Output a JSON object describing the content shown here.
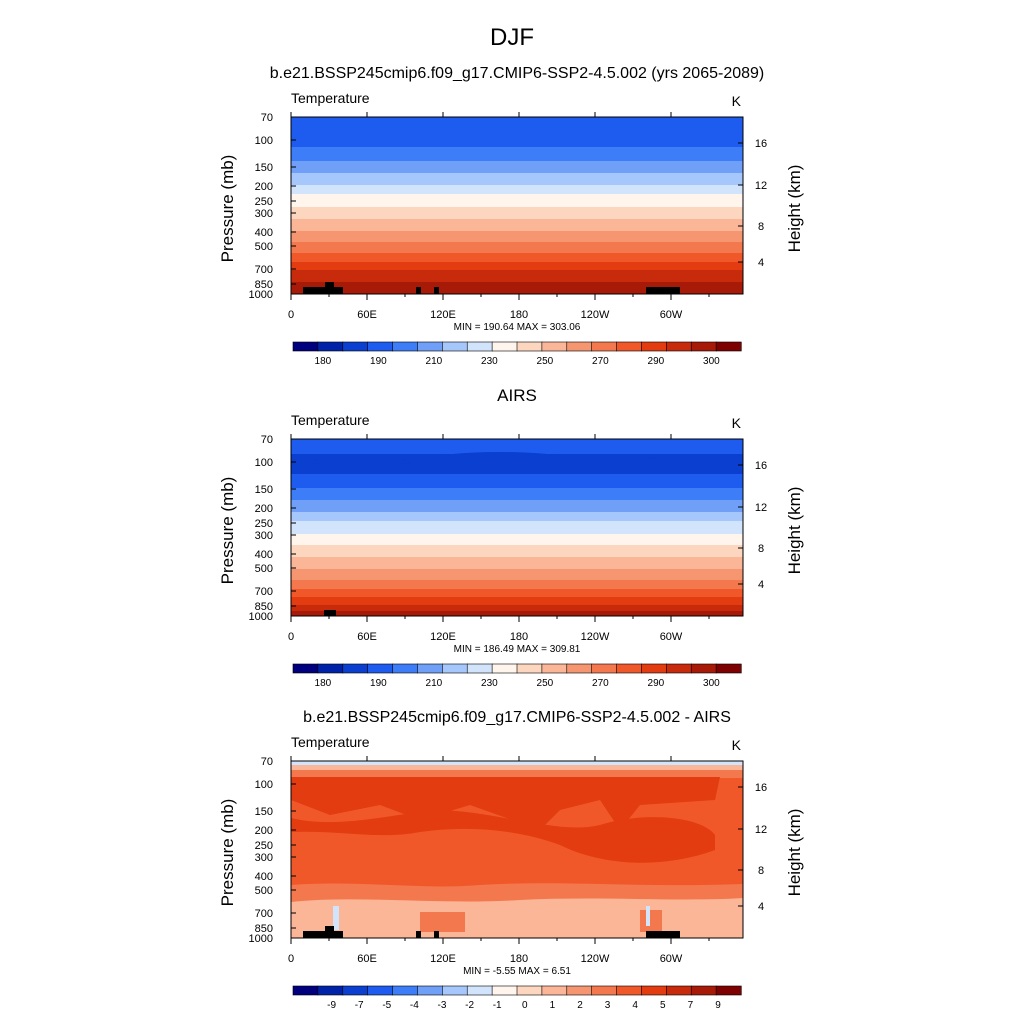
{
  "figure": {
    "title": "DJF"
  },
  "chart_data": [
    {
      "type": "heatmap",
      "title": "b.e21.BSSP245cmip6.f09_g17.CMIP6-SSP2-4.5.002 (yrs 2065-2089)",
      "left_label": "Temperature",
      "units_label": "K",
      "ylabel": "Pressure (mb)",
      "ylabel_right": "Height (km)",
      "x_ticks": [
        "0",
        "60E",
        "120E",
        "180",
        "120W",
        "60W"
      ],
      "y_ticks": [
        "70",
        "100",
        "150",
        "200",
        "250",
        "300",
        "400",
        "500",
        "700",
        "850",
        "1000"
      ],
      "y_ticks_right": [
        "16",
        "12",
        "8",
        "4"
      ],
      "stats": "MIN = 190.64  MAX = 303.06",
      "colorbar_labels": [
        "180",
        "190",
        "210",
        "230",
        "250",
        "270",
        "290",
        "300"
      ],
      "colorbar_colors": [
        "#00007f",
        "#0022a8",
        "#0a3fd0",
        "#1e5cf0",
        "#3d7ef8",
        "#6f9ff7",
        "#a6c7fb",
        "#d2e4fc",
        "#fff5ec",
        "#fdd6c0",
        "#fbb597",
        "#f69670",
        "#f4784e",
        "#f0582a",
        "#e23c10",
        "#c82a0c",
        "#a71a08",
        "#7f0000"
      ],
      "band_colors_top_to_bottom": [
        "#1e5cf0",
        "#3d7ef8",
        "#6f9ff7",
        "#a6c7fb",
        "#d2e4fc",
        "#fff5ec",
        "#fdd6c0",
        "#fbb597",
        "#f69670",
        "#f4784e",
        "#f0582a",
        "#e23c10",
        "#c82a0c",
        "#a71a08"
      ]
    },
    {
      "type": "heatmap",
      "title": "AIRS",
      "left_label": "Temperature",
      "units_label": "K",
      "ylabel": "Pressure (mb)",
      "ylabel_right": "Height (km)",
      "x_ticks": [
        "0",
        "60E",
        "120E",
        "180",
        "120W",
        "60W"
      ],
      "y_ticks": [
        "70",
        "100",
        "150",
        "200",
        "250",
        "300",
        "400",
        "500",
        "700",
        "850",
        "1000"
      ],
      "y_ticks_right": [
        "16",
        "12",
        "8",
        "4"
      ],
      "stats": "MIN = 186.49  MAX = 309.81",
      "colorbar_labels": [
        "180",
        "190",
        "210",
        "230",
        "250",
        "270",
        "290",
        "300"
      ],
      "colorbar_colors": [
        "#00007f",
        "#0022a8",
        "#0a3fd0",
        "#1e5cf0",
        "#3d7ef8",
        "#6f9ff7",
        "#a6c7fb",
        "#d2e4fc",
        "#fff5ec",
        "#fdd6c0",
        "#fbb597",
        "#f69670",
        "#f4784e",
        "#f0582a",
        "#e23c10",
        "#c82a0c",
        "#a71a08",
        "#7f0000"
      ],
      "band_colors_top_to_bottom": [
        "#1e5cf0",
        "#0a3fd0",
        "#1e5cf0",
        "#3d7ef8",
        "#6f9ff7",
        "#a6c7fb",
        "#d2e4fc",
        "#fff5ec",
        "#fdd6c0",
        "#fbb597",
        "#f69670",
        "#f4784e",
        "#f0582a",
        "#e23c10",
        "#c82a0c",
        "#a71a08"
      ]
    },
    {
      "type": "heatmap",
      "title": "b.e21.BSSP245cmip6.f09_g17.CMIP6-SSP2-4.5.002 - AIRS",
      "left_label": "Temperature",
      "units_label": "K",
      "ylabel": "Pressure (mb)",
      "ylabel_right": "Height (km)",
      "x_ticks": [
        "0",
        "60E",
        "120E",
        "180",
        "120W",
        "60W"
      ],
      "y_ticks": [
        "70",
        "100",
        "150",
        "200",
        "250",
        "300",
        "400",
        "500",
        "700",
        "850",
        "1000"
      ],
      "y_ticks_right": [
        "16",
        "12",
        "8",
        "4"
      ],
      "stats": "MIN =  -5.55  MAX =   6.51",
      "colorbar_labels": [
        "-9",
        "-7",
        "-5",
        "-4",
        "-3",
        "-2",
        "-1",
        "0",
        "1",
        "2",
        "3",
        "4",
        "5",
        "7",
        "9"
      ],
      "colorbar_colors": [
        "#00007f",
        "#0022a8",
        "#0a3fd0",
        "#1e5cf0",
        "#3d7ef8",
        "#6f9ff7",
        "#a6c7fb",
        "#d2e4fc",
        "#fff5ec",
        "#fdd6c0",
        "#fbb597",
        "#f69670",
        "#f4784e",
        "#f0582a",
        "#e23c10",
        "#c82a0c",
        "#a71a08",
        "#7f0000"
      ],
      "band_colors_top_to_bottom": [
        "#f69670",
        "#e23c10",
        "#f0582a",
        "#f4784e",
        "#f69670",
        "#fbb597"
      ]
    }
  ]
}
